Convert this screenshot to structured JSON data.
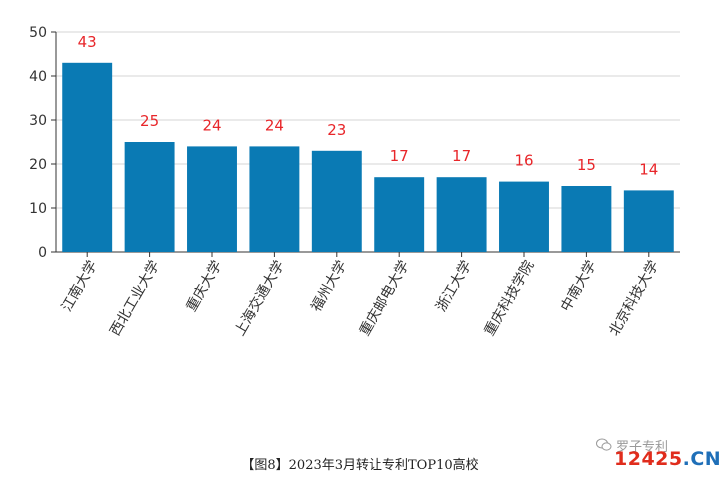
{
  "chart_data": {
    "type": "bar",
    "categories": [
      "江南大学",
      "西北工业大学",
      "重庆大学",
      "上海交通大学",
      "福州大学",
      "重庆邮电大学",
      "浙江大学",
      "重庆科技学院",
      "中南大学",
      "北京科技大学"
    ],
    "values": [
      43,
      25,
      24,
      24,
      23,
      17,
      17,
      16,
      15,
      14
    ],
    "ylim": [
      0,
      50
    ],
    "yticks": [
      0,
      10,
      20,
      30,
      40,
      50
    ],
    "grid": true,
    "legend": "none",
    "colors": {
      "bar": "#0a7ab4",
      "label": "#e8262a",
      "grid": "#d6d6d6",
      "axis": "#333333"
    }
  },
  "caption": "【图8】2023年3月转让专利TOP10高校",
  "watermark": {
    "account": "罗子专利",
    "site_digits": "12425",
    "site_tld": ".CN",
    "icon": "wechat-icon"
  }
}
